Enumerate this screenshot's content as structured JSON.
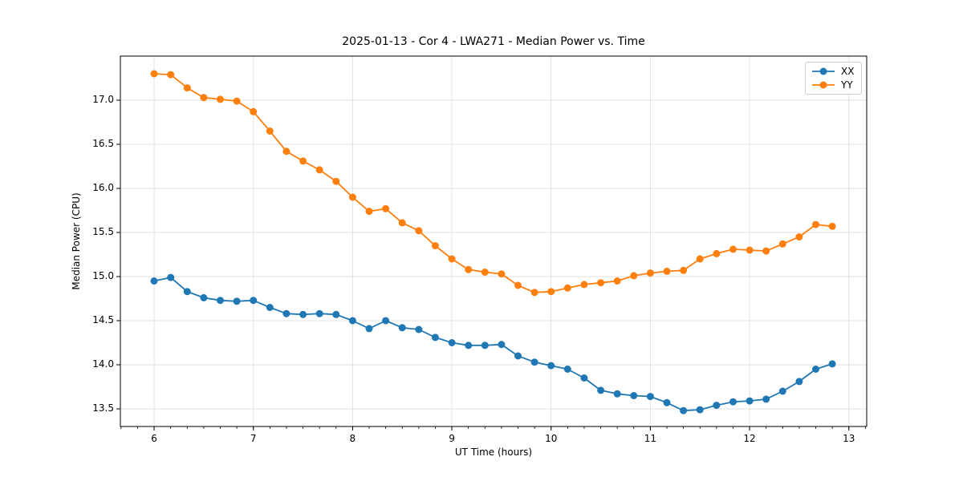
{
  "chart_data": {
    "type": "line",
    "title": "2025-01-13 - Cor 4 - LWA271 - Median Power vs. Time",
    "xlabel": "UT Time (hours)",
    "ylabel": "Median Power (CPU)",
    "xlim": [
      5.66,
      13.18
    ],
    "ylim": [
      13.3,
      17.5
    ],
    "xtick_values": [
      6,
      7,
      8,
      9,
      10,
      11,
      12,
      13
    ],
    "xtick_labels": [
      "6",
      "7",
      "8",
      "9",
      "10",
      "11",
      "12",
      "13"
    ],
    "ytick_values": [
      13.5,
      14.0,
      14.5,
      15.0,
      15.5,
      16.0,
      16.5,
      17.0
    ],
    "ytick_labels": [
      "13.5",
      "14.0",
      "14.5",
      "15.0",
      "15.5",
      "16.0",
      "16.5",
      "17.0"
    ],
    "x_minor_tick_step": 0.166667,
    "grid": true,
    "grid_color": "#e0e0e0",
    "legend_position": "upper right",
    "x": [
      6.0,
      6.1667,
      6.3333,
      6.5,
      6.6667,
      6.8333,
      7.0,
      7.1667,
      7.3333,
      7.5,
      7.6667,
      7.8333,
      8.0,
      8.1667,
      8.3333,
      8.5,
      8.6667,
      8.8333,
      9.0,
      9.1667,
      9.3333,
      9.5,
      9.6667,
      9.8333,
      10.0,
      10.1667,
      10.3333,
      10.5,
      10.6667,
      10.8333,
      11.0,
      11.1667,
      11.3333,
      11.5,
      11.6667,
      11.8333,
      12.0,
      12.1667,
      12.3333,
      12.5,
      12.6667,
      12.8333
    ],
    "series": [
      {
        "name": "XX",
        "color": "#1f77b4",
        "marker": "circle",
        "values": [
          14.95,
          14.99,
          14.83,
          14.76,
          14.73,
          14.72,
          14.73,
          14.65,
          14.58,
          14.57,
          14.58,
          14.57,
          14.5,
          14.41,
          14.5,
          14.42,
          14.4,
          14.31,
          14.25,
          14.22,
          14.22,
          14.23,
          14.1,
          14.03,
          13.99,
          13.95,
          13.85,
          13.71,
          13.67,
          13.65,
          13.64,
          13.57,
          13.48,
          13.49,
          13.54,
          13.58,
          13.59,
          13.61,
          13.7,
          13.81,
          13.95,
          14.01
        ]
      },
      {
        "name": "YY",
        "color": "#ff7f0e",
        "marker": "circle",
        "values": [
          17.3,
          17.29,
          17.14,
          17.03,
          17.01,
          16.99,
          16.87,
          16.65,
          16.42,
          16.31,
          16.21,
          16.08,
          15.9,
          15.74,
          15.77,
          15.61,
          15.52,
          15.35,
          15.2,
          15.08,
          15.05,
          15.03,
          14.9,
          14.82,
          14.83,
          14.87,
          14.91,
          14.93,
          14.95,
          15.01,
          15.04,
          15.06,
          15.07,
          15.2,
          15.26,
          15.31,
          15.3,
          15.29,
          15.37,
          15.45,
          15.59,
          15.57
        ]
      }
    ]
  }
}
